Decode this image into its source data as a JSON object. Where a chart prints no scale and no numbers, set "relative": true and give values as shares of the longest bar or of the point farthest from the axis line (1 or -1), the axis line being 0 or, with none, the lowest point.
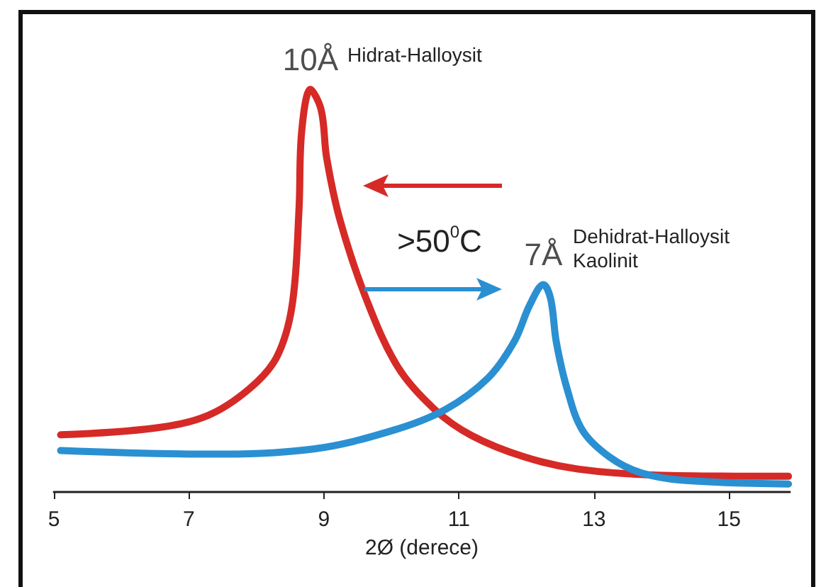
{
  "chart_data": {
    "type": "line",
    "relative": true,
    "xlabel": "2Ø (derece)",
    "xlim": [
      5,
      15.9
    ],
    "xticks": [
      5,
      7,
      9,
      11,
      13,
      15
    ],
    "grid": false,
    "marker": "none",
    "line_style": "solid",
    "series": [
      {
        "color": "#d62a27",
        "x": [
          5.1,
          6.5,
          7.28,
          7.9,
          8.3,
          8.53,
          8.63,
          8.67,
          8.8,
          8.96,
          9.04,
          9.24,
          9.63,
          10.1,
          10.64,
          11.19,
          11.97,
          12.76,
          13.93,
          15.88
        ],
        "values": [
          0.142,
          0.159,
          0.19,
          0.257,
          0.335,
          0.465,
          0.7,
          0.895,
          1.0,
          0.948,
          0.83,
          0.674,
          0.478,
          0.309,
          0.205,
          0.14,
          0.087,
          0.057,
          0.042,
          0.039
        ]
      },
      {
        "color": "#2a90d2",
        "x": [
          5.1,
          7.28,
          8.85,
          10.02,
          10.8,
          11.43,
          11.82,
          12.05,
          12.25,
          12.36,
          12.44,
          12.6,
          12.83,
          13.23,
          13.69,
          14.32,
          15.88
        ],
        "values": [
          0.103,
          0.094,
          0.107,
          0.153,
          0.205,
          0.283,
          0.374,
          0.465,
          0.515,
          0.478,
          0.374,
          0.257,
          0.153,
          0.087,
          0.048,
          0.029,
          0.02
        ]
      }
    ],
    "annotations": [
      {
        "text": "10Å",
        "x": 8.8,
        "y": 1.0
      },
      "Hidrat-Halloysit",
      {
        "text": "7Å",
        "x": 12.25,
        "y": 0.515
      },
      "Dehidrat-Halloysit\nKaolinit",
      ">50$^{0}$C"
    ]
  }
}
